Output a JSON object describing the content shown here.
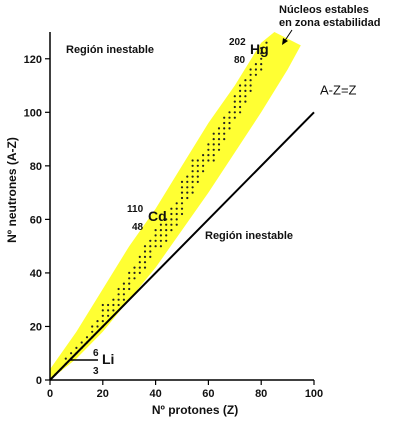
{
  "chart_data": {
    "type": "scatter",
    "title": "",
    "xlabel": "Nº  protones (Z)",
    "ylabel": "Nº  neutrones (A-Z)",
    "xlim": [
      0,
      100
    ],
    "ylim": [
      0,
      130
    ],
    "xticks": [
      0,
      20,
      40,
      60,
      80,
      100
    ],
    "yticks": [
      0,
      20,
      40,
      60,
      80,
      100,
      120
    ],
    "grid": false,
    "band": {
      "name": "Núcleos estables en zona estabilidad",
      "color": "#ffff33",
      "lower": [
        [
          0,
          0
        ],
        [
          10,
          8
        ],
        [
          20,
          18
        ],
        [
          30,
          30
        ],
        [
          40,
          42
        ],
        [
          50,
          56
        ],
        [
          60,
          70
        ],
        [
          70,
          85
        ],
        [
          80,
          100
        ],
        [
          90,
          116
        ],
        [
          95,
          125
        ]
      ],
      "upper": [
        [
          0,
          4
        ],
        [
          10,
          18
        ],
        [
          20,
          34
        ],
        [
          30,
          50
        ],
        [
          40,
          64
        ],
        [
          50,
          80
        ],
        [
          60,
          96
        ],
        [
          70,
          110
        ],
        [
          80,
          126
        ],
        [
          85,
          130
        ]
      ]
    },
    "stable_nuclei": {
      "color": "#222222",
      "x": [
        2,
        4,
        6,
        8,
        10,
        12,
        14,
        16,
        18,
        20,
        22,
        24,
        26,
        28,
        30,
        32,
        34,
        36,
        38,
        40,
        42,
        44,
        46,
        48,
        50,
        52,
        54,
        56,
        58,
        60,
        62,
        64,
        66,
        68,
        70,
        72,
        74,
        76,
        78,
        80,
        82
      ],
      "y_min": [
        2,
        4,
        6,
        8,
        10,
        12,
        14,
        16,
        20,
        20,
        24,
        26,
        28,
        30,
        34,
        38,
        40,
        42,
        46,
        50,
        50,
        52,
        56,
        58,
        62,
        68,
        70,
        74,
        78,
        82,
        82,
        86,
        90,
        94,
        98,
        100,
        104,
        108,
        114,
        116,
        122
      ],
      "y_max": [
        3,
        5,
        8,
        10,
        12,
        14,
        16,
        20,
        22,
        28,
        28,
        30,
        34,
        36,
        40,
        42,
        46,
        50,
        52,
        56,
        58,
        60,
        64,
        66,
        74,
        76,
        82,
        82,
        84,
        88,
        92,
        94,
        98,
        100,
        106,
        110,
        112,
        116,
        118,
        124,
        126
      ]
    },
    "reference_line": {
      "label": "A-Z=Z",
      "x": [
        0,
        100
      ],
      "y": [
        0,
        100
      ]
    },
    "annotations": [
      {
        "text": "Región inestable",
        "x": 6,
        "y": 122
      },
      {
        "text": "Región inestable",
        "x": 59,
        "y": 53
      },
      {
        "text": "Núcleos estables",
        "x": 88,
        "y": 136
      },
      {
        "text": "en zona estabilidad",
        "x": 88,
        "y": 131
      }
    ],
    "isotopes": [
      {
        "symbol": "Li",
        "mass": "6",
        "atomic": "3",
        "x": 3,
        "y": 3
      },
      {
        "symbol": "Cd",
        "mass": "110",
        "atomic": "48",
        "x": 48,
        "y": 62
      },
      {
        "symbol": "Hg",
        "mass": "202",
        "atomic": "80",
        "x": 80,
        "y": 122
      }
    ]
  }
}
